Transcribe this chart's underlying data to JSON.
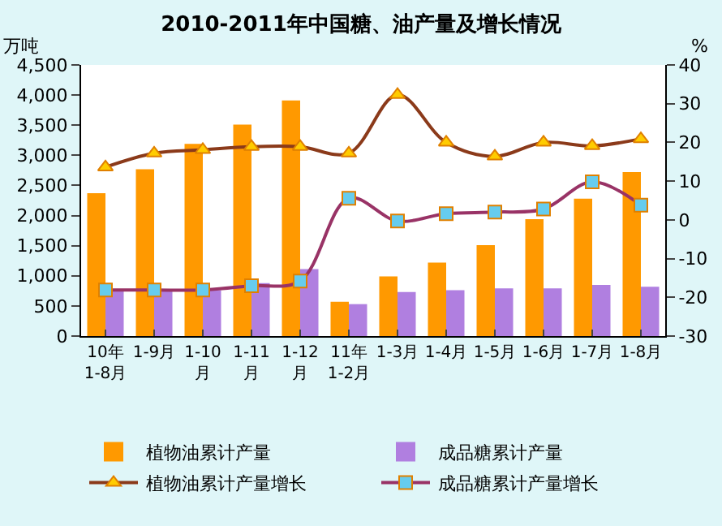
{
  "chart_data": {
    "type": "bar",
    "title": "2010-2011年中国糖、油产量及增长情况",
    "ylabel": "万吨",
    "y2label": "%",
    "categories": [
      "10年\n1-8月",
      "1-9月",
      "1-10\n月",
      "1-11\n月",
      "1-12\n月",
      "11年\n1-2月",
      "1-3月",
      "1-4月",
      "1-5月",
      "1-6月",
      "1-7月",
      "1-8月"
    ],
    "series": [
      {
        "name": "植物油累计产量",
        "color": "#ff9900",
        "values": [
          2370,
          2770,
          3190,
          3510,
          3910,
          570,
          990,
          1220,
          1510,
          1940,
          2280,
          2720
        ]
      },
      {
        "name": "成品糖累计产量",
        "color": "#b07fe0",
        "values": [
          760,
          760,
          760,
          880,
          1110,
          530,
          730,
          760,
          790,
          790,
          850,
          820
        ]
      },
      {
        "name": "植物油累计产量增长",
        "type": "line",
        "axis": "y2",
        "marker": "triangle",
        "color": "#8b3a1a",
        "values": [
          13.6,
          17.2,
          18.1,
          18.9,
          18.9,
          17.2,
          32.3,
          20.0,
          16.4,
          20.0,
          19.1,
          20.9
        ]
      },
      {
        "name": "成品糖累计产量增长",
        "type": "line",
        "axis": "y2",
        "marker": "square",
        "color": "#993366",
        "values": [
          -18.1,
          -18.1,
          -18.1,
          -17.0,
          -15.8,
          5.6,
          -0.3,
          1.6,
          2.0,
          2.8,
          9.8,
          3.8
        ]
      }
    ],
    "ylim": [
      0,
      4500
    ],
    "yticks": [
      0,
      {
        "value": 500,
        "label": "500"
      },
      {
        "value": 1000,
        "label": "1,000"
      },
      {
        "value": 1500,
        "label": "1,500"
      },
      {
        "value": 2000,
        "label": "2,000"
      },
      {
        "value": 2500,
        "label": "2,500"
      },
      {
        "value": 3000,
        "label": "3,000"
      },
      {
        "value": 3500,
        "label": "3,500"
      },
      {
        "value": 4000,
        "label": "4,000"
      },
      {
        "value": 4500,
        "label": "4,500"
      }
    ],
    "y2lim": [
      -30,
      40
    ],
    "y2ticks": [
      -30,
      -20,
      -10,
      0,
      10,
      20,
      30,
      40
    ],
    "grid": false,
    "legend": "bottom"
  }
}
